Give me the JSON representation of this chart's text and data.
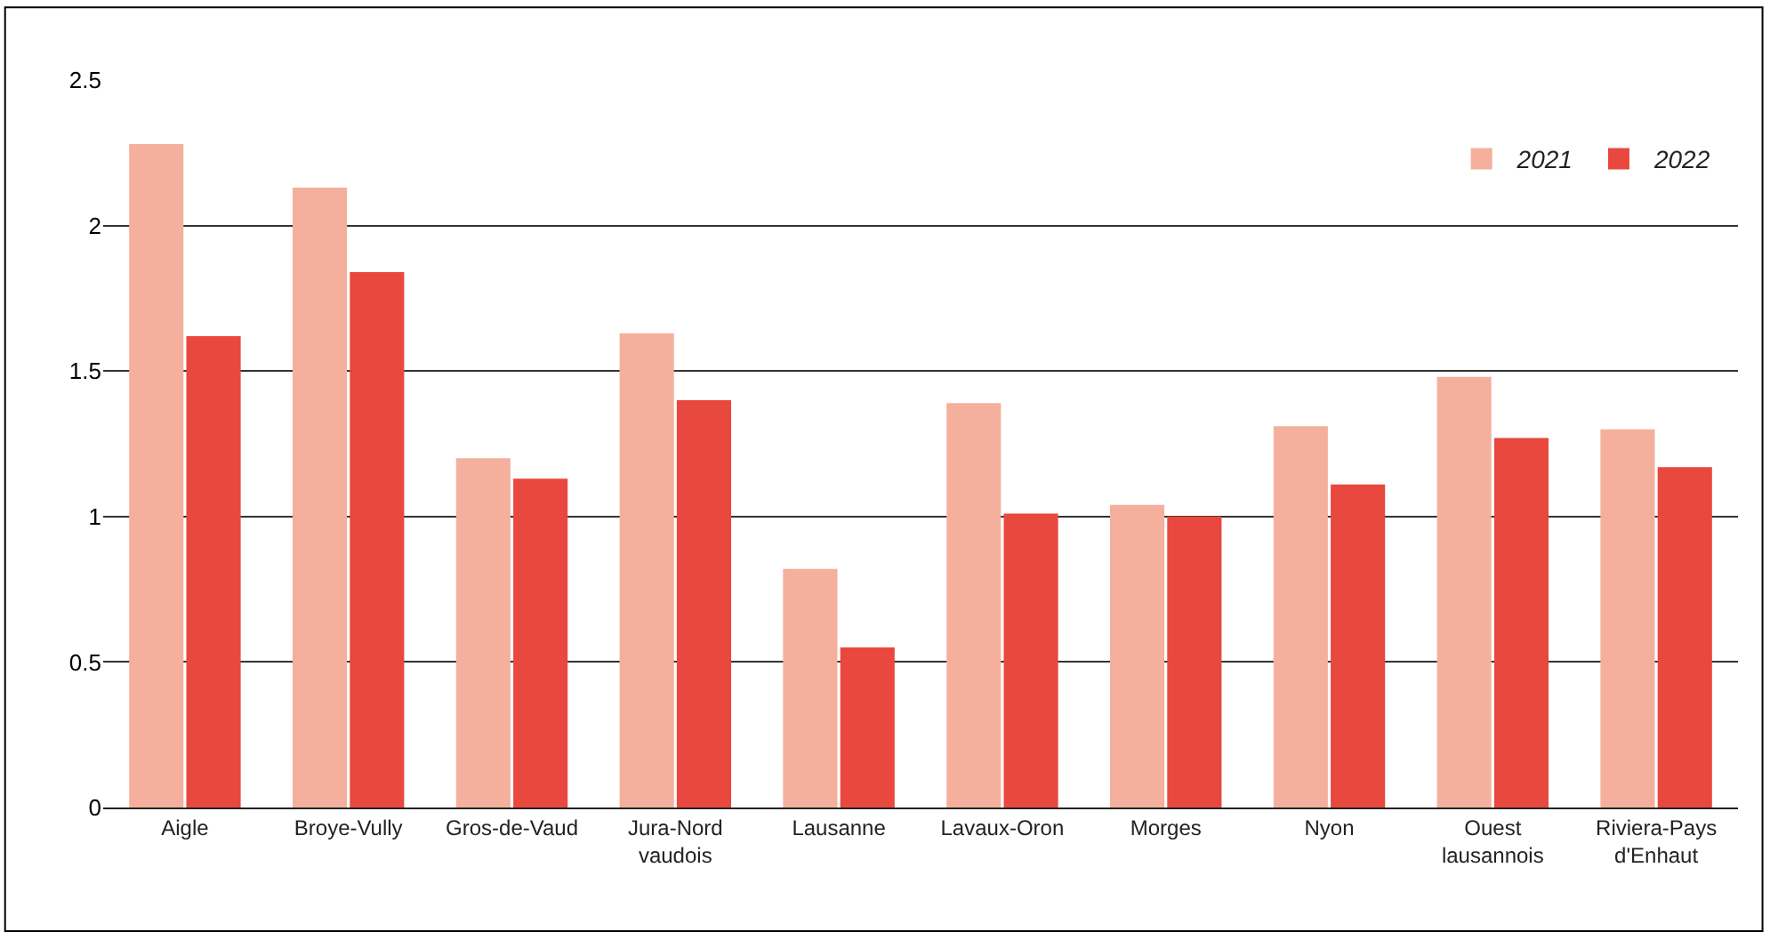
{
  "chart_data": {
    "type": "bar",
    "categories": [
      "Aigle",
      "Broye-Vully",
      "Gros-de-Vaud",
      "Jura-Nord\nvaudois",
      "Lausanne",
      "Lavaux-Oron",
      "Morges",
      "Nyon",
      "Ouest\nlausannois",
      "Riviera-Pays\nd'Enhaut"
    ],
    "series": [
      {
        "name": "2021",
        "color": "#f4b09c",
        "values": [
          2.28,
          2.13,
          1.2,
          1.63,
          0.82,
          1.39,
          1.04,
          1.31,
          1.48,
          1.3
        ]
      },
      {
        "name": "2022",
        "color": "#e8483d",
        "values": [
          1.62,
          1.84,
          1.13,
          1.4,
          0.55,
          1.01,
          1.0,
          1.11,
          1.27,
          1.17
        ]
      }
    ],
    "ylim": [
      0,
      2.5
    ],
    "yticks": [
      0,
      0.5,
      1,
      1.5,
      2,
      2.5
    ],
    "grid": "y",
    "legend": "top right"
  }
}
